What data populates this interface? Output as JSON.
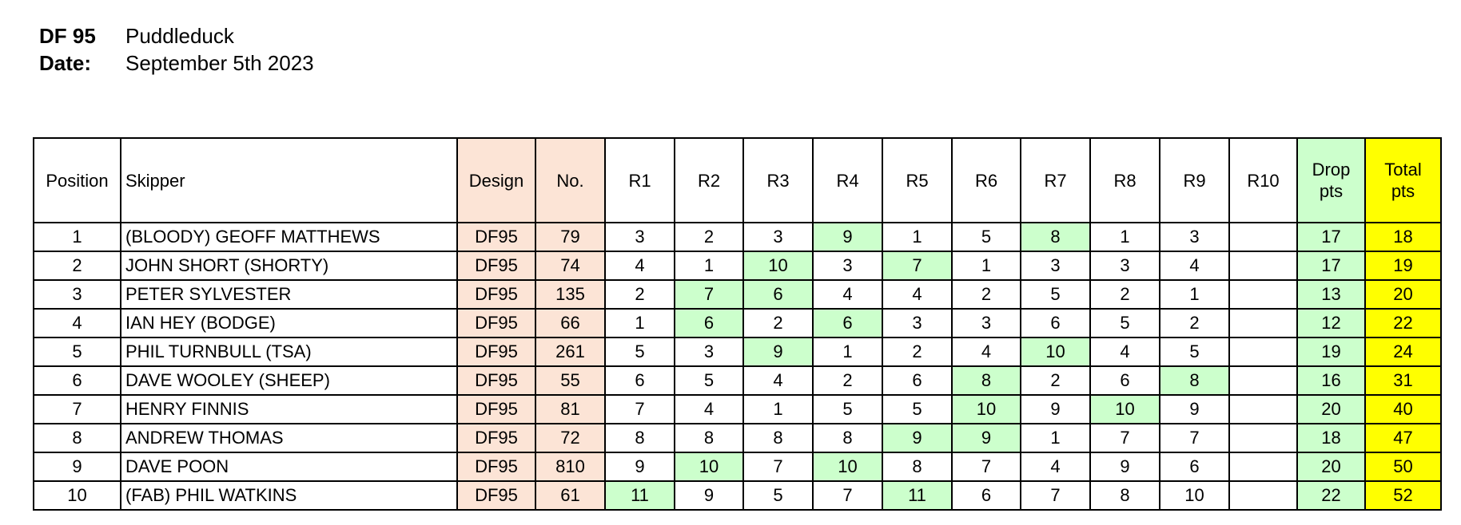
{
  "header": {
    "class_label": "DF 95",
    "venue": "Puddleduck",
    "date_label": "Date:",
    "date": "September 5th 2023"
  },
  "colors": {
    "design_no_bg": "#fce4d6",
    "drop_bg": "#ccffcc",
    "total_bg": "#ffff00"
  },
  "columns": {
    "position": "Position",
    "skipper": "Skipper",
    "design": "Design",
    "no": "No.",
    "rounds": [
      "R1",
      "R2",
      "R3",
      "R4",
      "R5",
      "R6",
      "R7",
      "R8",
      "R9",
      "R10"
    ],
    "drop": [
      "Drop",
      "pts"
    ],
    "total": [
      "Total",
      "pts"
    ]
  },
  "rows": [
    {
      "pos": "1",
      "skipper": "(BLOODY) GEOFF MATTHEWS",
      "design": "DF95",
      "no": "79",
      "r": [
        "3",
        "2",
        "3",
        "9",
        "1",
        "5",
        "8",
        "1",
        "3",
        ""
      ],
      "dropped": [
        3,
        6
      ],
      "drop": "17",
      "total": "18"
    },
    {
      "pos": "2",
      "skipper": "JOHN SHORT (SHORTY)",
      "design": "DF95",
      "no": "74",
      "r": [
        "4",
        "1",
        "10",
        "3",
        "7",
        "1",
        "3",
        "3",
        "4",
        ""
      ],
      "dropped": [
        2,
        4
      ],
      "drop": "17",
      "total": "19"
    },
    {
      "pos": "3",
      "skipper": "PETER SYLVESTER",
      "design": "DF95",
      "no": "135",
      "r": [
        "2",
        "7",
        "6",
        "4",
        "4",
        "2",
        "5",
        "2",
        "1",
        ""
      ],
      "dropped": [
        1,
        2
      ],
      "drop": "13",
      "total": "20"
    },
    {
      "pos": "4",
      "skipper": "IAN HEY (BODGE)",
      "design": "DF95",
      "no": "66",
      "r": [
        "1",
        "6",
        "2",
        "6",
        "3",
        "3",
        "6",
        "5",
        "2",
        ""
      ],
      "dropped": [
        1,
        3
      ],
      "drop": "12",
      "total": "22"
    },
    {
      "pos": "5",
      "skipper": "PHIL TURNBULL (TSA)",
      "design": "DF95",
      "no": "261",
      "r": [
        "5",
        "3",
        "9",
        "1",
        "2",
        "4",
        "10",
        "4",
        "5",
        ""
      ],
      "dropped": [
        2,
        6
      ],
      "drop": "19",
      "total": "24"
    },
    {
      "pos": "6",
      "skipper": "DAVE WOOLEY (SHEEP)",
      "design": "DF95",
      "no": "55",
      "r": [
        "6",
        "5",
        "4",
        "2",
        "6",
        "8",
        "2",
        "6",
        "8",
        ""
      ],
      "dropped": [
        5,
        8
      ],
      "drop": "16",
      "total": "31"
    },
    {
      "pos": "7",
      "skipper": "HENRY FINNIS",
      "design": "DF95",
      "no": "81",
      "r": [
        "7",
        "4",
        "1",
        "5",
        "5",
        "10",
        "9",
        "10",
        "9",
        ""
      ],
      "dropped": [
        5,
        7
      ],
      "drop": "20",
      "total": "40"
    },
    {
      "pos": "8",
      "skipper": "ANDREW THOMAS",
      "design": "DF95",
      "no": "72",
      "r": [
        "8",
        "8",
        "8",
        "8",
        "9",
        "9",
        "1",
        "7",
        "7",
        ""
      ],
      "dropped": [
        4,
        5
      ],
      "drop": "18",
      "total": "47"
    },
    {
      "pos": "9",
      "skipper": "DAVE POON",
      "design": "DF95",
      "no": "810",
      "r": [
        "9",
        "10",
        "7",
        "10",
        "8",
        "7",
        "4",
        "9",
        "6",
        ""
      ],
      "dropped": [
        1,
        3
      ],
      "drop": "20",
      "total": "50"
    },
    {
      "pos": "10",
      "skipper": "(FAB) PHIL WATKINS",
      "design": "DF95",
      "no": "61",
      "r": [
        "11",
        "9",
        "5",
        "7",
        "11",
        "6",
        "7",
        "8",
        "10",
        ""
      ],
      "dropped": [
        0,
        4
      ],
      "drop": "22",
      "total": "52"
    }
  ]
}
